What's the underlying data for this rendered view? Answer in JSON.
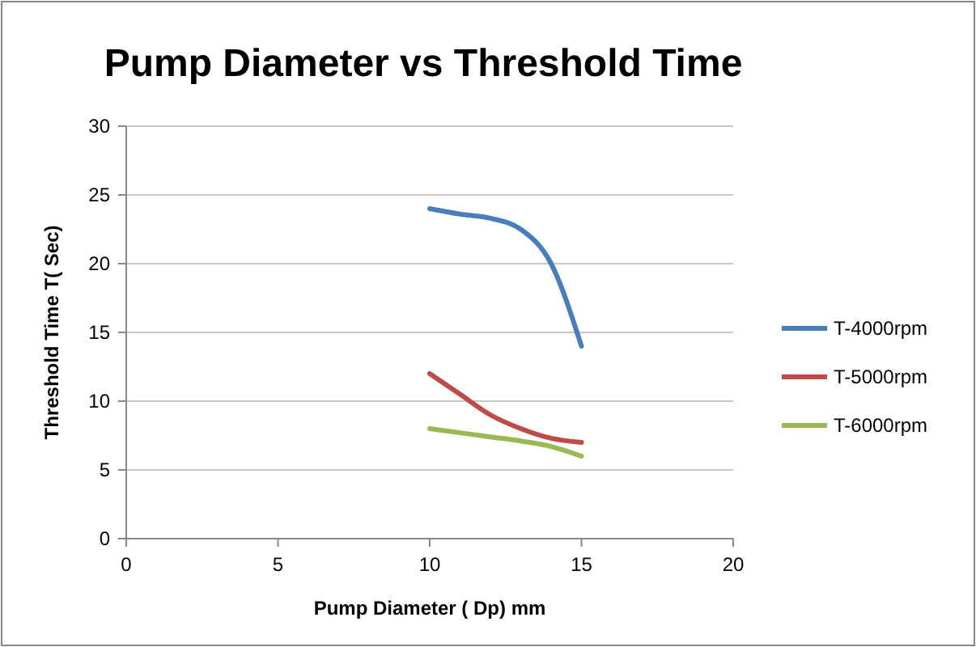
{
  "chart_data": {
    "type": "line",
    "title": "Pump Diameter vs Threshold Time",
    "xlabel": "Pump Diameter ( Dp) mm",
    "ylabel": "Threshold Time T( Sec)",
    "x": [
      10,
      11,
      12,
      13,
      14,
      15
    ],
    "series": [
      {
        "name": "T-4000rpm",
        "color": "#4a7ebb",
        "values": [
          24,
          23.6,
          23.3,
          22.5,
          20,
          14
        ]
      },
      {
        "name": "T-5000rpm",
        "color": "#be4b48",
        "values": [
          12,
          10.5,
          9,
          8,
          7.3,
          7
        ]
      },
      {
        "name": "T-6000rpm",
        "color": "#98b954",
        "values": [
          8,
          7.7,
          7.4,
          7.1,
          6.7,
          6
        ]
      }
    ],
    "xlim": [
      0,
      20
    ],
    "xticks": [
      0,
      5,
      10,
      15,
      20
    ],
    "ylim": [
      0,
      30
    ],
    "yticks": [
      0,
      5,
      10,
      15,
      20,
      25,
      30
    ],
    "grid": "y",
    "legend": "right",
    "marker": "none",
    "line_style": "solid"
  }
}
